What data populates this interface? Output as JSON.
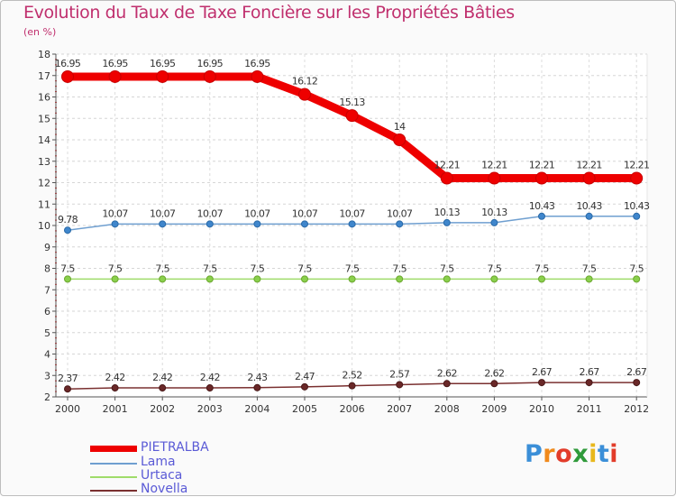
{
  "chart_data": {
    "type": "line",
    "title": "Evolution du Taux de Taxe Foncière sur les Propriétés Bâties",
    "unit_label": "(en %)",
    "categories": [
      "2000",
      "2001",
      "2002",
      "2003",
      "2004",
      "2005",
      "2006",
      "2007",
      "2008",
      "2009",
      "2010",
      "2011",
      "2012"
    ],
    "ylim": [
      2,
      18
    ],
    "yticks": [
      2,
      3,
      4,
      5,
      6,
      7,
      8,
      9,
      10,
      11,
      12,
      13,
      14,
      15,
      16,
      17,
      18
    ],
    "series": [
      {
        "name": "PIETRALBA",
        "color": "#ee0000",
        "values": [
          16.95,
          16.95,
          16.95,
          16.95,
          16.95,
          16.12,
          15.13,
          14,
          12.21,
          12.21,
          12.21,
          12.21,
          12.21
        ],
        "labels": [
          "16.95",
          "16.95",
          "16.95",
          "16.95",
          "16.95",
          "16.12",
          "15.13",
          "14",
          "12.21",
          "12.21",
          "12.21",
          "12.21",
          "12.21"
        ]
      },
      {
        "name": "Lama",
        "color": "#6f9fd0",
        "values": [
          9.78,
          10.07,
          10.07,
          10.07,
          10.07,
          10.07,
          10.07,
          10.07,
          10.13,
          10.13,
          10.43,
          10.43,
          10.43
        ],
        "labels": [
          "9.78",
          "10.07",
          "10.07",
          "10.07",
          "10.07",
          "10.07",
          "10.07",
          "10.07",
          "10.13",
          "10.13",
          "10.43",
          "10.43",
          "10.43"
        ]
      },
      {
        "name": "Urtaca",
        "color": "#9fdc6a",
        "values": [
          7.5,
          7.5,
          7.5,
          7.5,
          7.5,
          7.5,
          7.5,
          7.5,
          7.5,
          7.5,
          7.5,
          7.5,
          7.5
        ],
        "labels": [
          "7.5",
          "7.5",
          "7.5",
          "7.5",
          "7.5",
          "7.5",
          "7.5",
          "7.5",
          "7.5",
          "7.5",
          "7.5",
          "7.5",
          "7.5"
        ]
      },
      {
        "name": "Novella",
        "color": "#7a3030",
        "values": [
          2.37,
          2.42,
          2.42,
          2.42,
          2.43,
          2.47,
          2.52,
          2.57,
          2.62,
          2.62,
          2.67,
          2.67,
          2.67
        ],
        "labels": [
          "2.37",
          "2.42",
          "2.42",
          "2.42",
          "2.43",
          "2.47",
          "2.52",
          "2.57",
          "2.62",
          "2.62",
          "2.67",
          "2.67",
          "2.67"
        ]
      }
    ],
    "legend_position": "bottom-left"
  },
  "logo": {
    "letters": [
      "P",
      "r",
      "o",
      "x",
      "i",
      "t",
      "i"
    ],
    "colors": [
      "#3b8fd8",
      "#f08a1c",
      "#e23c2a",
      "#2f9a3a",
      "#e8b81c",
      "#3b8fd8",
      "#e23c2a"
    ]
  }
}
